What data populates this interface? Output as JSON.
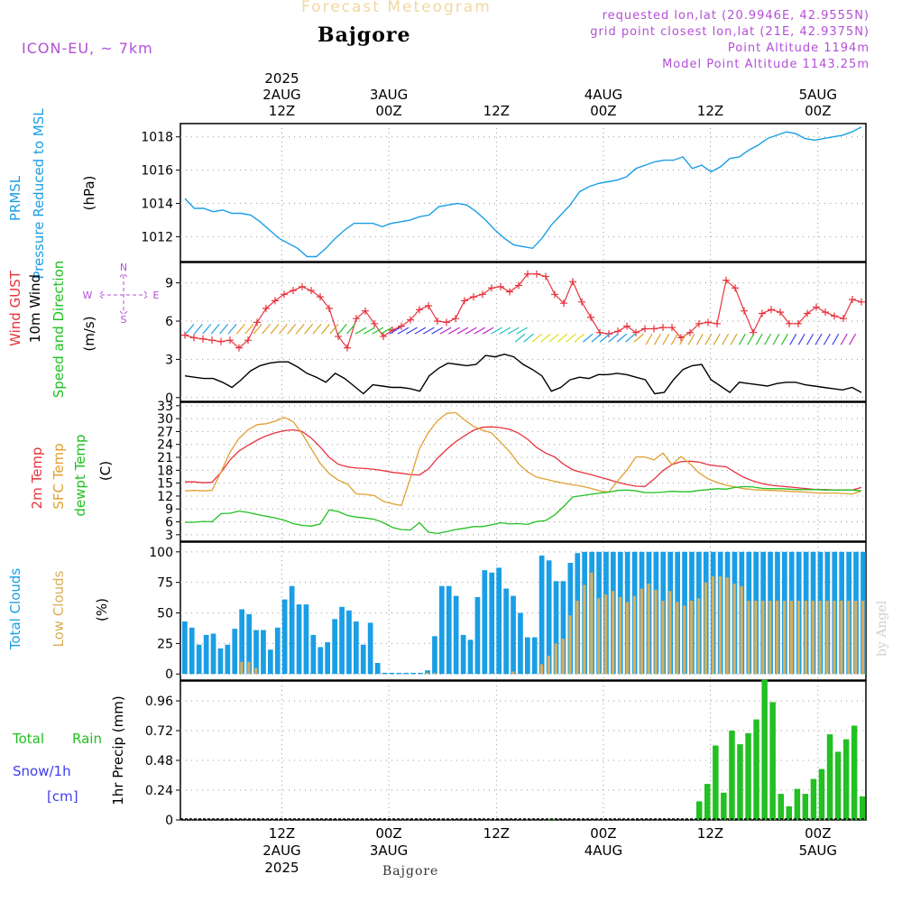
{
  "header": {
    "model": "ICON-EU, ~ 7km",
    "title": "Forecast Meteogram",
    "station": "Bajgore",
    "requested": "requested lon,lat (20.9946E, 42.9555N)",
    "grid_point": "grid point closest lon,lat (21E, 42.9375N)",
    "point_altitude": "Point Altitude 1194m",
    "model_altitude": "Model Point Altitude 1143.25m",
    "bottom_station": "Bajgore",
    "watermark": "by Angel"
  },
  "colors": {
    "pressure": "#1a9ee5",
    "gust": "#e8323c",
    "wind": "#000000",
    "temp": "#e8323c",
    "sfc": "#e0a030",
    "dew": "#22c022",
    "total_clouds": "#1a9ee5",
    "low_clouds": "#d9ae5a",
    "rain": "#22c022",
    "snow": "#3c3cf0",
    "direction": "#b34fd6"
  },
  "chart_data": [
    {
      "type": "line",
      "panel": "pressure",
      "ylabel_lines": [
        "PRMSL",
        "Pressure Reduced to MSL"
      ],
      "unit": "(hPa)",
      "ylim": [
        1010.5,
        1018.8
      ],
      "yticks": [
        "1012",
        "1014",
        "1016",
        "1018"
      ],
      "grid": true,
      "series": [
        {
          "values": [
            1014.3,
            1013.7,
            1013.7,
            1013.5,
            1013.6,
            1013.4,
            1013.4,
            1013.3,
            1012.9,
            1012.4,
            1011.9,
            1011.6,
            1011.3,
            1010.8,
            1010.8,
            1011.3,
            1011.9,
            1012.4,
            1012.8,
            1012.8,
            1012.8,
            1012.6,
            1012.8,
            1012.9,
            1013.0,
            1013.2,
            1013.3,
            1013.8,
            1013.9,
            1014.0,
            1013.9,
            1013.5,
            1013.0,
            1012.4,
            1011.9,
            1011.5,
            1011.4,
            1011.3,
            1011.9,
            1012.7,
            1013.3,
            1013.9,
            1014.7,
            1015.0,
            1015.2,
            1015.3,
            1015.4,
            1015.6,
            1016.1,
            1016.3,
            1016.5,
            1016.6,
            1016.6,
            1016.8,
            1016.1,
            1016.3,
            1015.9,
            1016.2,
            1016.7,
            1016.8,
            1017.2,
            1017.5,
            1017.9,
            1018.1,
            1018.3,
            1018.2,
            1017.9,
            1017.8,
            1017.9,
            1018.0,
            1018.1,
            1018.3,
            1018.6
          ]
        }
      ]
    },
    {
      "type": "line",
      "panel": "wind",
      "ylabel_lines": [
        "Wind GUST",
        "10m Wind",
        "Speed and Direction"
      ],
      "unit": "(m/s)",
      "compass": {
        "n": "N",
        "s": "S",
        "w": "W",
        "e": "E"
      },
      "ylim": [
        -0.3,
        10.6
      ],
      "yticks": [
        "0",
        "3",
        "6",
        "9"
      ],
      "grid": true,
      "series": [
        {
          "name": "Wind GUST",
          "values": [
            4.9,
            4.7,
            4.6,
            4.5,
            4.4,
            4.5,
            3.9,
            4.5,
            5.9,
            7.0,
            7.6,
            8.1,
            8.4,
            8.7,
            8.4,
            7.9,
            7.0,
            4.8,
            3.9,
            6.2,
            6.8,
            5.8,
            4.8,
            5.3,
            5.6,
            6.1,
            6.9,
            7.2,
            6.0,
            5.9,
            6.2,
            7.6,
            7.9,
            8.1,
            8.6,
            8.7,
            8.3,
            8.8,
            9.7,
            9.7,
            9.5,
            8.1,
            7.4,
            9.1,
            7.5,
            6.3,
            5.1,
            5.0,
            5.2,
            5.6,
            5.1,
            5.4,
            5.4,
            5.5,
            5.5,
            4.7,
            5.1,
            5.8,
            5.9,
            5.8,
            9.2,
            8.6,
            6.8,
            5.1,
            6.6,
            6.9,
            6.7,
            5.8,
            5.8,
            6.6,
            7.1,
            6.7,
            6.4,
            6.2,
            7.7,
            7.5
          ]
        },
        {
          "name": "10m Wind",
          "values": [
            1.7,
            1.6,
            1.5,
            1.5,
            1.2,
            0.8,
            1.4,
            2.1,
            2.5,
            2.7,
            2.8,
            2.8,
            2.4,
            1.9,
            1.6,
            1.2,
            1.9,
            1.5,
            0.9,
            0.3,
            1.0,
            0.9,
            0.8,
            0.8,
            0.7,
            0.5,
            1.7,
            2.3,
            2.7,
            2.6,
            2.5,
            2.6,
            3.3,
            3.2,
            3.4,
            3.2,
            2.6,
            2.2,
            1.7,
            0.5,
            0.8,
            1.4,
            1.6,
            1.5,
            1.8,
            1.8,
            1.9,
            1.8,
            1.6,
            1.4,
            0.3,
            0.4,
            1.4,
            2.2,
            2.5,
            2.6,
            1.4,
            0.9,
            0.4,
            1.2,
            1.1,
            1.0,
            0.9,
            1.1,
            1.2,
            1.2,
            1.0,
            0.9,
            0.8,
            0.7,
            0.6,
            0.8,
            0.4
          ]
        }
      ]
    },
    {
      "type": "line",
      "panel": "temperature",
      "ylabel_lines": [
        "2m Temp",
        "SFC Temp",
        "dewpt Temp"
      ],
      "unit": "(C)",
      "ylim": [
        1.5,
        33.8
      ],
      "yticks": [
        "3",
        "6",
        "9",
        "12",
        "15",
        "18",
        "21",
        "24",
        "27",
        "30",
        "33"
      ],
      "grid": true,
      "series": [
        {
          "name": "2m Temp",
          "values": [
            15.3,
            15.3,
            15.1,
            15.2,
            17.5,
            20.4,
            22.5,
            23.8,
            25.0,
            26.0,
            26.7,
            27.2,
            27.4,
            27.0,
            25.5,
            23.4,
            21.0,
            19.4,
            18.8,
            18.5,
            18.4,
            18.2,
            17.9,
            17.5,
            17.3,
            17.0,
            16.9,
            18.3,
            20.8,
            22.8,
            24.6,
            26.0,
            27.3,
            28.0,
            28.1,
            27.9,
            27.5,
            26.6,
            25.2,
            23.3,
            22.0,
            21.1,
            19.4,
            18.1,
            17.5,
            17.0,
            16.4,
            15.8,
            15.2,
            14.7,
            14.3,
            14.2,
            15.9,
            17.9,
            19.3,
            20.0,
            20.1,
            19.9,
            19.3,
            19.0,
            18.8,
            17.5,
            16.3,
            15.5,
            14.9,
            14.5,
            14.3,
            14.1,
            13.9,
            13.7,
            13.5,
            13.5,
            13.4,
            13.4,
            13.4,
            14.0
          ]
        },
        {
          "name": "SFC Temp",
          "values": [
            13.2,
            13.3,
            13.2,
            13.3,
            17.6,
            22.2,
            25.4,
            27.4,
            28.6,
            28.8,
            29.4,
            30.3,
            29.3,
            26.5,
            23.0,
            19.6,
            17.2,
            15.7,
            14.8,
            12.5,
            12.4,
            12.1,
            10.8,
            10.2,
            9.8,
            16.2,
            23.0,
            26.8,
            29.5,
            31.2,
            31.4,
            29.7,
            28.2,
            27.3,
            26.7,
            24.5,
            22.3,
            19.5,
            17.6,
            16.4,
            15.9,
            15.4,
            15.0,
            14.6,
            14.3,
            13.8,
            13.2,
            12.9,
            15.6,
            18.0,
            21.1,
            21.1,
            20.4,
            22.0,
            19.3,
            21.2,
            19.5,
            17.4,
            16.0,
            15.2,
            14.5,
            14.1,
            13.7,
            13.5,
            13.4,
            13.3,
            13.2,
            13.1,
            13.0,
            12.9,
            12.7,
            12.7,
            12.7,
            12.6,
            12.5,
            13.2
          ]
        },
        {
          "name": "dewpt Temp",
          "values": [
            5.9,
            5.9,
            6.1,
            6.0,
            7.9,
            8.0,
            8.5,
            8.2,
            7.7,
            7.3,
            6.9,
            6.4,
            5.6,
            5.2,
            5.0,
            5.5,
            8.8,
            8.4,
            7.5,
            7.1,
            6.9,
            6.6,
            5.8,
            4.7,
            4.2,
            4.1,
            5.8,
            3.6,
            3.3,
            3.7,
            4.2,
            4.5,
            4.9,
            4.9,
            5.3,
            5.8,
            5.5,
            5.6,
            5.4,
            6.1,
            6.3,
            7.6,
            9.6,
            11.8,
            12.1,
            12.4,
            12.7,
            12.9,
            13.3,
            13.4,
            13.2,
            12.8,
            12.8,
            12.9,
            13.1,
            13.0,
            13.0,
            13.3,
            13.5,
            13.7,
            13.6,
            14.0,
            14.2,
            14.1,
            13.8,
            13.7,
            13.7,
            13.6,
            13.5,
            13.5,
            13.5,
            13.4,
            13.4,
            13.4,
            13.4,
            13.2
          ]
        }
      ]
    },
    {
      "type": "bar",
      "panel": "clouds",
      "ylabel_lines": [
        "Total Clouds",
        "Low Clouds"
      ],
      "unit": "(%)",
      "ylim": [
        -5,
        108
      ],
      "yticks": [
        "0",
        "25",
        "50",
        "75",
        "100"
      ],
      "grid": true,
      "series": [
        {
          "name": "Total Clouds",
          "values": [
            43,
            38,
            24,
            32,
            33,
            21,
            24,
            37,
            53,
            49,
            36,
            36,
            20,
            38,
            61,
            72,
            57,
            57,
            32,
            22,
            26,
            45,
            55,
            52,
            43,
            24,
            42,
            9,
            1,
            1,
            1,
            1,
            1,
            1,
            3,
            31,
            72,
            72,
            64,
            32,
            28,
            63,
            85,
            83,
            87,
            70,
            64,
            50,
            30,
            30,
            97,
            93,
            76,
            76,
            91,
            99,
            100,
            100,
            100,
            100,
            100,
            100,
            100,
            100,
            100,
            100,
            100,
            100,
            100,
            100,
            100,
            100,
            100,
            100,
            100,
            100,
            100,
            100,
            100,
            100,
            100,
            100,
            100,
            100,
            100,
            100,
            100,
            100,
            100,
            100,
            100,
            100,
            100,
            100,
            100,
            100
          ]
        },
        {
          "name": "Low Clouds",
          "values": [
            0,
            0,
            0,
            0,
            0,
            0,
            0,
            0,
            10,
            10,
            5,
            0,
            0,
            0,
            0,
            0,
            0,
            0,
            0,
            0,
            0,
            0,
            0,
            0,
            0,
            0,
            0,
            0,
            0,
            0,
            0,
            0,
            0,
            0,
            1,
            1,
            0,
            0,
            0,
            0,
            0,
            0,
            0,
            0,
            0,
            0,
            2,
            0,
            0,
            0,
            8,
            15,
            25,
            29,
            48,
            60,
            73,
            83,
            62,
            65,
            68,
            63,
            59,
            64,
            70,
            74,
            69,
            60,
            68,
            59,
            56,
            60,
            62,
            75,
            80,
            80,
            79,
            74,
            72,
            60,
            60,
            60,
            60,
            60,
            60,
            60,
            60,
            60,
            60,
            60,
            60,
            60,
            60,
            60,
            60,
            60
          ]
        }
      ]
    },
    {
      "type": "bar",
      "panel": "precipitation",
      "ylabel": "1hr Precip (mm)",
      "legend": [
        "Total",
        "Rain",
        "Snow/1h",
        "[cm]"
      ],
      "ylim": [
        0,
        1.12
      ],
      "yticks": [
        "0",
        "0.24",
        "0.48",
        "0.72",
        "0.96"
      ],
      "grid": true,
      "series": [
        {
          "name": "Total Rain",
          "values": [
            0,
            0,
            0,
            0,
            0,
            0,
            0,
            0,
            0,
            0,
            0,
            0,
            0,
            0,
            0,
            0,
            0,
            0,
            0,
            0,
            0,
            0,
            0,
            0,
            0,
            0,
            0,
            0,
            0,
            0,
            0,
            0,
            0,
            0,
            0,
            0,
            0,
            0,
            0,
            0,
            0,
            0,
            0,
            0,
            0,
            0.01,
            0,
            0,
            0,
            0,
            0,
            0,
            0,
            0,
            0,
            0,
            0,
            0,
            0,
            0,
            0,
            0,
            0,
            0.15,
            0.29,
            0.6,
            0.22,
            0.72,
            0.61,
            0.7,
            0.81,
            1.13,
            0.95,
            0.21,
            0.11,
            0.25,
            0.21,
            0.33,
            0.41,
            0.69,
            0.55,
            0.65,
            0.76,
            0.19
          ]
        }
      ]
    }
  ],
  "time_axis": {
    "top": [
      {
        "pos": 0.148,
        "l1": "2025",
        "l2": "2AUG",
        "l3": "12Z"
      },
      {
        "pos": 0.304,
        "l1": "",
        "l2": "3AUG",
        "l3": "00Z"
      },
      {
        "pos": 0.461,
        "l1": "",
        "l2": "",
        "l3": "12Z"
      },
      {
        "pos": 0.617,
        "l1": "",
        "l2": "4AUG",
        "l3": "00Z"
      },
      {
        "pos": 0.773,
        "l1": "",
        "l2": "",
        "l3": "12Z"
      },
      {
        "pos": 0.93,
        "l1": "",
        "l2": "5AUG",
        "l3": "00Z"
      }
    ],
    "bottom": [
      {
        "pos": 0.148,
        "l1": "12Z",
        "l2": "2AUG",
        "l3": "2025"
      },
      {
        "pos": 0.304,
        "l1": "00Z",
        "l2": "3AUG",
        "l3": ""
      },
      {
        "pos": 0.461,
        "l1": "12Z",
        "l2": "",
        "l3": ""
      },
      {
        "pos": 0.617,
        "l1": "00Z",
        "l2": "4AUG",
        "l3": ""
      },
      {
        "pos": 0.773,
        "l1": "12Z",
        "l2": "",
        "l3": ""
      },
      {
        "pos": 0.93,
        "l1": "00Z",
        "l2": "5AUG",
        "l3": ""
      }
    ]
  }
}
